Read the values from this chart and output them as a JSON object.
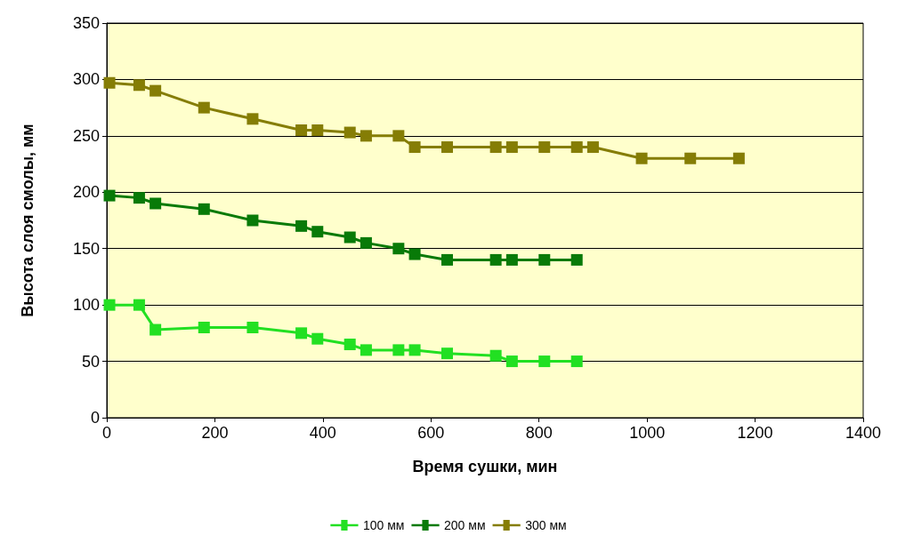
{
  "chart_data": {
    "type": "line",
    "xlabel": "Время сушки, мин",
    "ylabel": "Высота слоя смолы, мм",
    "xlim": [
      0,
      1400
    ],
    "xticks": [
      0,
      200,
      400,
      600,
      800,
      1000,
      1200,
      1400
    ],
    "ylim": [
      0,
      350
    ],
    "yticks": [
      0,
      50,
      100,
      150,
      200,
      250,
      300,
      350
    ],
    "grid": "y",
    "legend": "bottom",
    "marker": "square",
    "line_style": "solid",
    "series": [
      {
        "name": "100 мм",
        "color": "#22e022",
        "x": [
          5,
          60,
          90,
          180,
          270,
          360,
          390,
          450,
          480,
          540,
          570,
          630,
          720,
          750,
          810,
          870
        ],
        "values": [
          100,
          100,
          78,
          80,
          80,
          75,
          70,
          65,
          60,
          60,
          60,
          57,
          55,
          50,
          50,
          50
        ]
      },
      {
        "name": "200 мм",
        "color": "#087a08",
        "x": [
          5,
          60,
          90,
          180,
          270,
          360,
          390,
          450,
          480,
          540,
          570,
          630,
          720,
          750,
          810,
          870
        ],
        "values": [
          197,
          195,
          190,
          185,
          175,
          170,
          165,
          160,
          155,
          150,
          145,
          140,
          140,
          140,
          140,
          140
        ]
      },
      {
        "name": "300 мм",
        "color": "#857d05",
        "x": [
          5,
          60,
          90,
          180,
          270,
          360,
          390,
          450,
          480,
          540,
          570,
          630,
          720,
          750,
          810,
          870,
          900,
          990,
          1080,
          1170
        ],
        "values": [
          297,
          295,
          290,
          275,
          265,
          255,
          255,
          253,
          250,
          250,
          240,
          240,
          240,
          240,
          240,
          240,
          240,
          230,
          230,
          230
        ]
      }
    ]
  }
}
